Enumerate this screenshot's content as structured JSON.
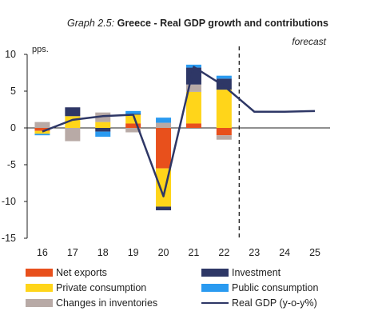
{
  "title": {
    "prefix": "Graph 2.5:",
    "main": "Greece - Real GDP growth and contributions"
  },
  "chart_data": {
    "type": "bar",
    "stacked": true,
    "categories": [
      "16",
      "17",
      "18",
      "19",
      "20",
      "21",
      "22",
      "23",
      "24",
      "25"
    ],
    "ylim": [
      -15,
      10
    ],
    "yticks": [
      -15,
      -10,
      -5,
      0,
      5,
      10
    ],
    "ylabel": "pps.",
    "annotation": "forecast",
    "forecast_start_between": [
      "22",
      "23"
    ],
    "series": [
      {
        "name": "Net exports",
        "color": "#e8501c",
        "values": [
          -0.4,
          0,
          0,
          0.6,
          -5.5,
          0.6,
          -1.0,
          null,
          null,
          null
        ]
      },
      {
        "name": "Private consumption",
        "color": "#ffd51a",
        "values": [
          -0.4,
          1.6,
          0.8,
          1.2,
          -5.2,
          4.3,
          5.2,
          null,
          null,
          null
        ]
      },
      {
        "name": "Changes in inventories",
        "color": "#b8aaa6",
        "values": [
          0.8,
          -1.8,
          1.3,
          -0.6,
          0.7,
          1.0,
          -0.6,
          null,
          null,
          null
        ]
      },
      {
        "name": "Investment",
        "color": "#2e3766",
        "values": [
          0,
          1.2,
          -0.5,
          0.1,
          -0.5,
          2.3,
          1.5,
          null,
          null,
          null
        ]
      },
      {
        "name": "Public consumption",
        "color": "#2a9af0",
        "values": [
          -0.2,
          0,
          -0.7,
          0.4,
          0.7,
          0.4,
          0.4,
          null,
          null,
          null
        ]
      },
      {
        "name": "Real GDP (y-o-y%)",
        "type": "line",
        "color": "#2e3766",
        "values": [
          -0.5,
          1.1,
          1.6,
          1.8,
          -9.3,
          8.3,
          5.7,
          2.2,
          2.2,
          2.3
        ]
      }
    ],
    "legend": {
      "placement": "bottom",
      "left": [
        "Net exports",
        "Private consumption",
        "Changes in inventories"
      ],
      "right": [
        "Investment",
        "Public consumption",
        "Real GDP (y-o-y%)"
      ]
    }
  }
}
